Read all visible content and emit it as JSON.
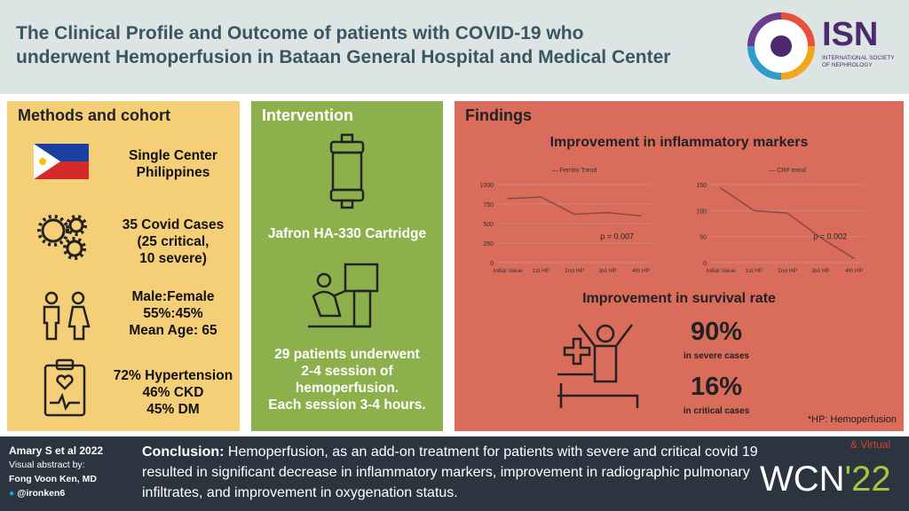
{
  "header": {
    "title_line1": "The Clinical Profile and Outcome of patients with COVID-19 who",
    "title_line2": "underwent Hemoperfusion in Bataan General Hospital and Medical Center",
    "logo_text": "ISN",
    "logo_sub1": "INTERNATIONAL SOCIETY",
    "logo_sub2": "OF NEPHROLOGY"
  },
  "methods": {
    "heading": "Methods and cohort",
    "items": [
      {
        "icon": "philippines-flag-icon",
        "lines": [
          "Single Center",
          "Philippines"
        ]
      },
      {
        "icon": "virus-gears-icon",
        "lines": [
          "35 Covid Cases",
          "(25 critical,",
          "10 severe)"
        ]
      },
      {
        "icon": "male-female-icon",
        "lines": [
          "Male:Female",
          "55%:45%",
          "Mean Age: 65"
        ]
      },
      {
        "icon": "clipboard-heart-icon",
        "lines": [
          "72% Hypertension",
          "46% CKD",
          "45% DM"
        ]
      }
    ]
  },
  "intervention": {
    "heading": "Intervention",
    "cartridge": "Jafron HA-330 Cartridge",
    "lines": [
      "29 patients underwent",
      "2-4 session of",
      "hemoperfusion.",
      "Each session 3-4 hours."
    ]
  },
  "findings": {
    "heading": "Findings",
    "sub1": "Improvement in inflammatory markers",
    "sub2": "Improvement in survival rate",
    "severe_pct": "90%",
    "severe_label": "in severe cases",
    "critical_pct": "16%",
    "critical_label": "in critical cases",
    "footnote": "*HP: Hemoperfusion"
  },
  "chart_data": [
    {
      "type": "line",
      "title": "",
      "legend": "Ferritin Trend",
      "categories": [
        "Initial Value",
        "1st HP",
        "2nd HP",
        "3rd HP",
        "4th HP"
      ],
      "values": [
        820,
        840,
        620,
        640,
        600
      ],
      "ylim": [
        0,
        1000
      ],
      "yticks": [
        0,
        250,
        500,
        750,
        1000
      ],
      "annotation": "p = 0.007",
      "grid": true
    },
    {
      "type": "line",
      "title": "",
      "legend": "CRP trend",
      "categories": [
        "Initial Value",
        "1st HP",
        "2nd HP",
        "3rd HP",
        "4th HP"
      ],
      "values": [
        143,
        100,
        95,
        48,
        8
      ],
      "ylim": [
        0,
        150
      ],
      "yticks": [
        0,
        50,
        100,
        150
      ],
      "annotation": "p = 0.002",
      "grid": true
    }
  ],
  "footer": {
    "citation": "Amary S et al 2022",
    "by": "Visual abstract by:",
    "author": "Fong Voon Ken, MD",
    "handle": "@ironken6",
    "conclusion_label": "Conclusion:",
    "conclusion": " Hemoperfusion, as an add-on treatment for patients with severe and critical covid 19 resulted in significant decrease in inflammatory markers, improvement in radiographic pulmonary infiltrates, and improvement in oxygenation status.",
    "wcn": "WCN",
    "wcn_year": "'22",
    "virtual": "& Virtual"
  },
  "colors": {
    "methods": "#f5cf78",
    "intervention": "#8cb14c",
    "findings": "#d96c5b",
    "footer": "#2c3440",
    "title": "#3a5660"
  }
}
